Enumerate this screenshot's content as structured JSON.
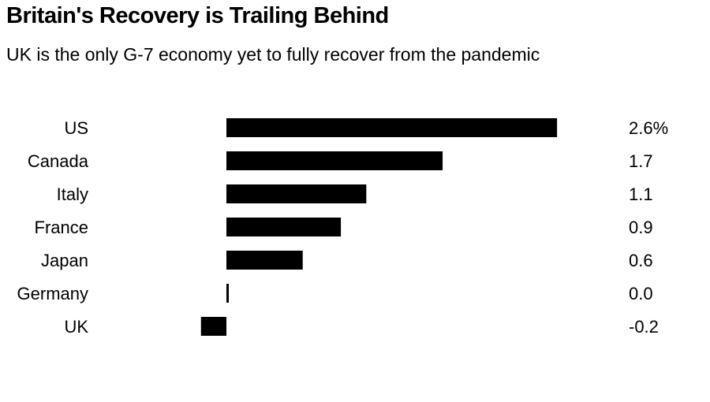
{
  "chart_data": {
    "type": "bar",
    "orientation": "horizontal",
    "title": "Britain's Recovery is Trailing Behind",
    "subtitle": "UK is the only G-7 economy yet to fully recover from the pandemic",
    "categories": [
      "US",
      "Canada",
      "Italy",
      "France",
      "Japan",
      "Germany",
      "UK"
    ],
    "values": [
      2.6,
      1.7,
      1.1,
      0.9,
      0.6,
      0.0,
      -0.2
    ],
    "value_labels": [
      "2.6%",
      "1.7",
      "1.1",
      "0.9",
      "0.6",
      "0.0",
      "-0.2"
    ],
    "xlabel": "",
    "ylabel": "",
    "xlim": [
      -0.2,
      2.6
    ],
    "grid": false,
    "bar_color": "#000000"
  }
}
